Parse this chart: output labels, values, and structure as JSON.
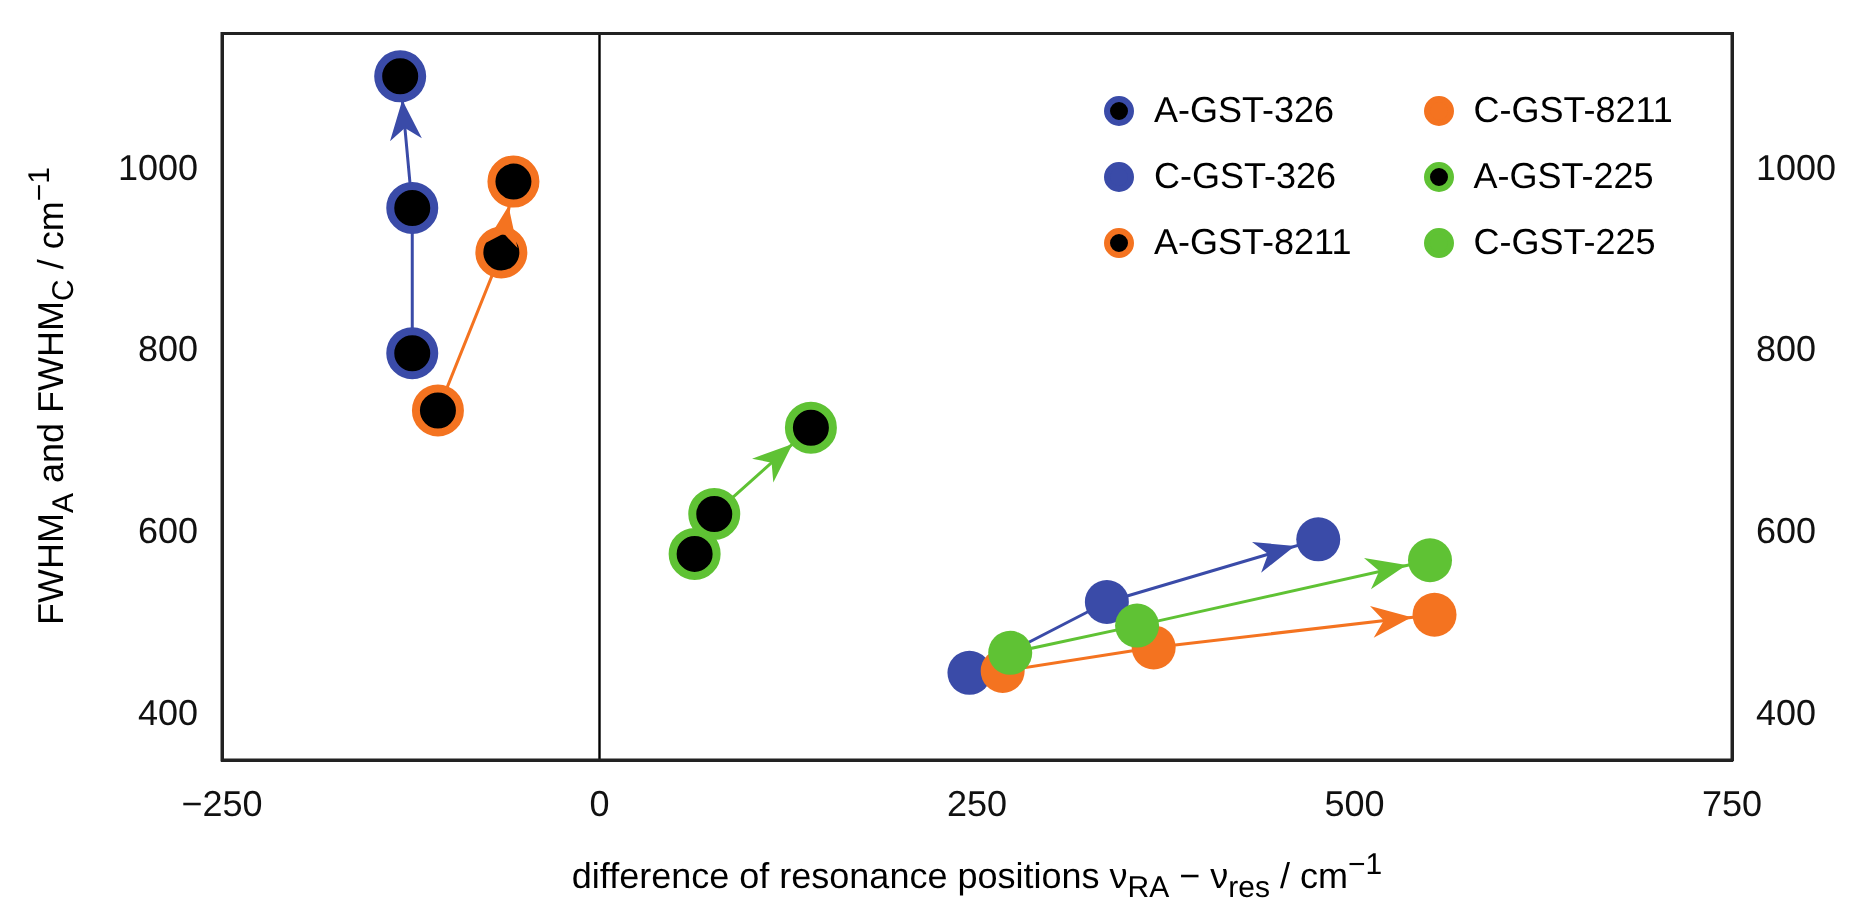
{
  "chart_data": {
    "type": "line",
    "xlabel": "difference of resonance positions ν$_{RA}$ − ν$_{res}$ / cm$^{−1}$",
    "ylabel": "FWHM$_{A}$ and FWHM$_{C}$ / cm$^{−1}$",
    "xlim": [
      -250,
      750
    ],
    "xticks": [
      {
        "value": -250,
        "label": "−250"
      },
      0,
      250,
      500,
      750
    ],
    "ylim": [
      350,
      1150
    ],
    "yticks": [
      400,
      600,
      800,
      1000
    ],
    "y2lim": [
      350,
      1150
    ],
    "y2ticks": [
      400,
      600,
      800,
      1000
    ],
    "grid": false,
    "legend": "top right",
    "marker": "circle",
    "line_style": "solid",
    "ref_lines": [
      {
        "axis": "x",
        "value": 0,
        "color": "#000000"
      }
    ],
    "series": [
      {
        "name": "A-GST-326",
        "color": "#3a4ba8",
        "colors": [
          "#000000",
          "#000000",
          "#000000"
        ],
        "x": [
          -124,
          -124,
          -132
        ],
        "values": [
          798,
          958,
          1103
        ]
      },
      {
        "name": "C-GST-326",
        "color": "#3a4ba8",
        "x": [
          245,
          336,
          476
        ],
        "values": [
          446,
          524,
          593
        ]
      },
      {
        "name": "A-GST-8211",
        "color": "#f47320",
        "colors": [
          "#000000",
          "#000000",
          "#000000"
        ],
        "x": [
          -107,
          -65,
          -57
        ],
        "values": [
          735,
          909,
          987
        ]
      },
      {
        "name": "C-GST-8211",
        "color": "#f47320",
        "x": [
          267,
          367,
          553
        ],
        "values": [
          448,
          474,
          510
        ]
      },
      {
        "name": "A-GST-225",
        "color": "#5fc234",
        "colors": [
          "#000000",
          "#000000",
          "#000000"
        ],
        "x": [
          63,
          76,
          140
        ],
        "values": [
          577,
          621,
          716
        ]
      },
      {
        "name": "C-GST-225",
        "color": "#5fc234",
        "x": [
          272,
          356,
          550
        ],
        "values": [
          468,
          498,
          570
        ]
      }
    ]
  }
}
